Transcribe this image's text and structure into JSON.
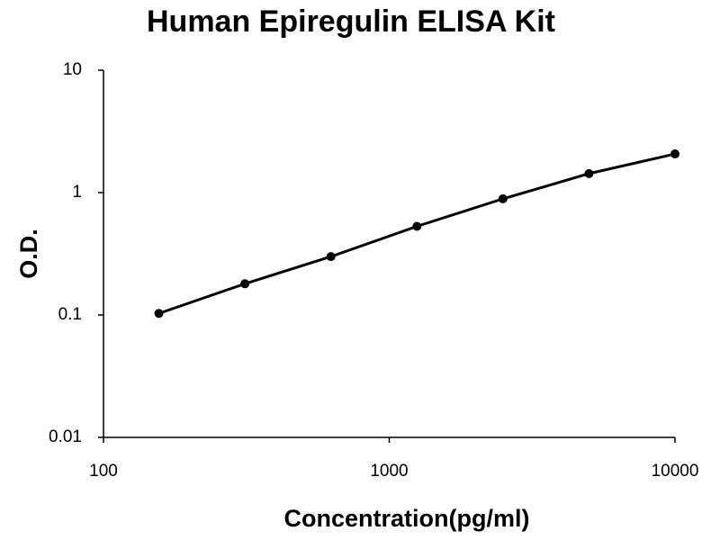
{
  "chart_data": {
    "type": "scatter-line",
    "title": "Human Epiregulin ELISA Kit",
    "x_label": "Concentration(pg/ml)",
    "y_label": "O.D.",
    "x": [
      156.25,
      312.5,
      625,
      1250,
      2500,
      5000,
      10000
    ],
    "series": [
      {
        "color": "#000000",
        "values": [
          0.103,
          0.18,
          0.3,
          0.53,
          0.89,
          1.43,
          2.07
        ]
      }
    ],
    "x_log": true,
    "y_log": true,
    "xlim": [
      100,
      10000
    ],
    "ylim": [
      0.01,
      10
    ],
    "xticks": [
      100,
      1000,
      10000
    ],
    "yticks": [
      0.01,
      0.1,
      1,
      10
    ]
  }
}
